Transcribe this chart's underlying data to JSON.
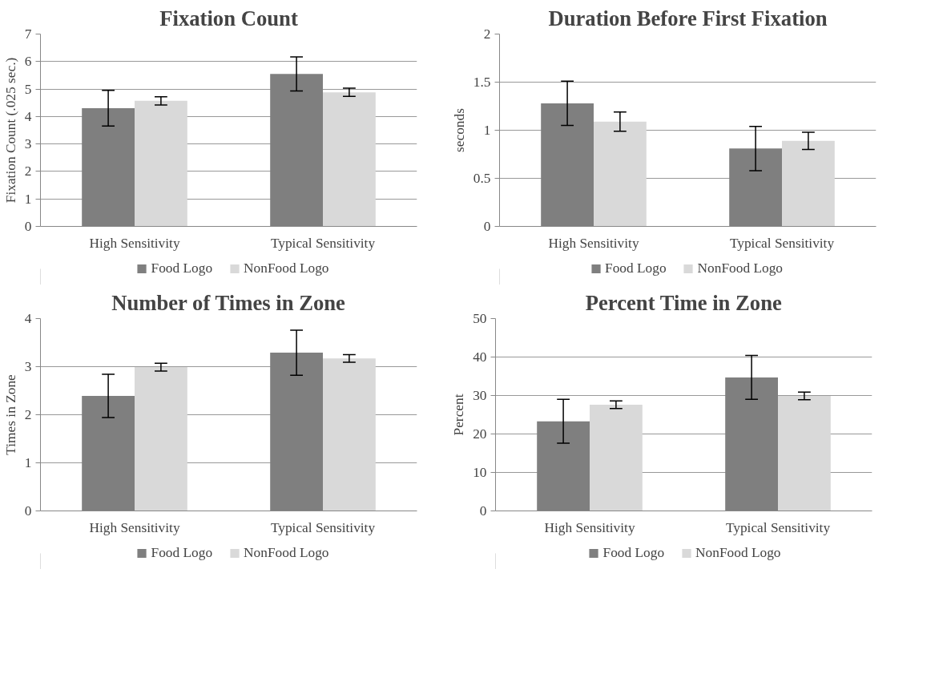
{
  "chart_data": [
    {
      "type": "bar",
      "title": "Fixation Count",
      "ylabel": "Fixation Count (.025 sec.)",
      "categories": [
        "High Sensitivity",
        "Typical Sensitivity"
      ],
      "ylim": [
        0,
        7
      ],
      "yticks": [
        0,
        1,
        2,
        3,
        4,
        5,
        6,
        7
      ],
      "grid": "y",
      "legend": "bottom",
      "series": [
        {
          "name": "Food Logo",
          "color": "#7f7f7f",
          "values": [
            4.3,
            5.55
          ],
          "errors": [
            0.65,
            0.62
          ]
        },
        {
          "name": "NonFood Logo",
          "color": "#d9d9d9",
          "values": [
            4.57,
            4.88
          ],
          "errors": [
            0.15,
            0.15
          ]
        }
      ]
    },
    {
      "type": "bar",
      "title": "Duration Before First Fixation",
      "ylabel": "seconds",
      "categories": [
        "High Sensitivity",
        "Typical Sensitivity"
      ],
      "ylim": [
        0,
        2
      ],
      "yticks": [
        0,
        0.5,
        1,
        1.5,
        2
      ],
      "grid": "y",
      "legend": "bottom",
      "series": [
        {
          "name": "Food Logo",
          "color": "#7f7f7f",
          "values": [
            1.28,
            0.81
          ],
          "errors": [
            0.23,
            0.23
          ]
        },
        {
          "name": "NonFood Logo",
          "color": "#d9d9d9",
          "values": [
            1.09,
            0.89
          ],
          "errors": [
            0.1,
            0.09
          ]
        }
      ]
    },
    {
      "type": "bar",
      "title": "Number of Times in Zone",
      "ylabel": "Times in Zone",
      "categories": [
        "High Sensitivity",
        "Typical Sensitivity"
      ],
      "ylim": [
        0,
        4
      ],
      "yticks": [
        0,
        1,
        2,
        3,
        4
      ],
      "grid": "y",
      "legend": "bottom",
      "series": [
        {
          "name": "Food Logo",
          "color": "#7f7f7f",
          "values": [
            2.39,
            3.29
          ],
          "errors": [
            0.45,
            0.47
          ]
        },
        {
          "name": "NonFood Logo",
          "color": "#d9d9d9",
          "values": [
            2.99,
            3.17
          ],
          "errors": [
            0.08,
            0.08
          ]
        }
      ]
    },
    {
      "type": "bar",
      "title": "Percent Time in Zone",
      "ylabel": "Percent",
      "categories": [
        "High Sensitivity",
        "Typical Sensitivity"
      ],
      "ylim": [
        0,
        50
      ],
      "yticks": [
        0,
        10,
        20,
        30,
        40,
        50
      ],
      "grid": "y",
      "legend": "bottom",
      "series": [
        {
          "name": "Food Logo",
          "color": "#7f7f7f",
          "values": [
            23.3,
            34.7
          ],
          "errors": [
            5.7,
            5.7
          ]
        },
        {
          "name": "NonFood Logo",
          "color": "#d9d9d9",
          "values": [
            27.6,
            29.9
          ],
          "errors": [
            1,
            1
          ]
        }
      ]
    }
  ]
}
